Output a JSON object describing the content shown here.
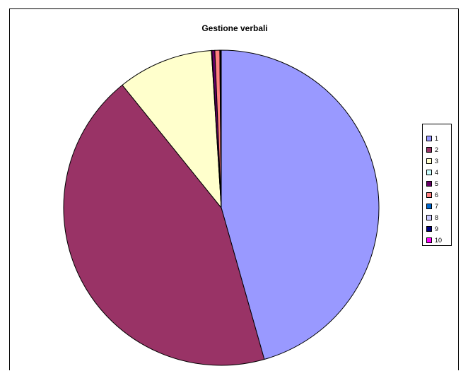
{
  "chart_data": {
    "type": "pie",
    "title": "Gestione verbali",
    "categories": [
      "1",
      "2",
      "3",
      "4",
      "5",
      "6",
      "7",
      "8",
      "9",
      "10"
    ],
    "values": [
      45.6,
      43.6,
      9.8,
      0.05,
      0.3,
      0.5,
      0.05,
      0.05,
      0.05,
      0.0
    ],
    "colors": [
      "#9999ff",
      "#993366",
      "#ffffcc",
      "#ccffff",
      "#660066",
      "#ff8080",
      "#0066cc",
      "#ccccff",
      "#000080",
      "#ff00ff"
    ],
    "legend_position": "right",
    "start_angle": "12 o'clock",
    "direction": "clockwise"
  }
}
